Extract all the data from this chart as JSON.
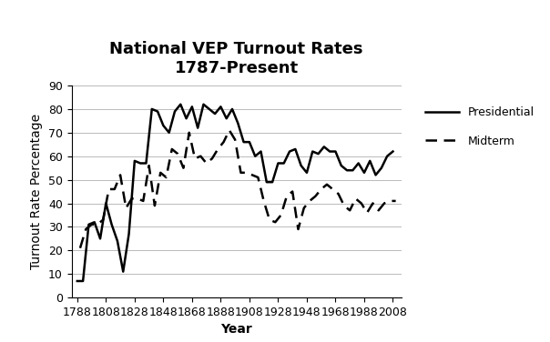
{
  "title": "National VEP Turnout Rates\n1787-Present",
  "xlabel": "Year",
  "ylabel": "Turnout Rate Percentage",
  "presidential_years": [
    1788,
    1792,
    1796,
    1800,
    1804,
    1808,
    1812,
    1816,
    1820,
    1824,
    1828,
    1832,
    1836,
    1840,
    1844,
    1848,
    1852,
    1856,
    1860,
    1864,
    1868,
    1872,
    1876,
    1880,
    1884,
    1888,
    1892,
    1896,
    1900,
    1904,
    1908,
    1912,
    1916,
    1920,
    1924,
    1928,
    1932,
    1936,
    1940,
    1944,
    1948,
    1952,
    1956,
    1960,
    1964,
    1968,
    1972,
    1976,
    1980,
    1984,
    1988,
    1992,
    1996,
    2000,
    2004,
    2008
  ],
  "presidential_values": [
    7,
    7,
    31,
    32,
    25,
    40,
    31,
    24,
    11,
    27,
    58,
    57,
    57,
    80,
    79,
    73,
    70,
    79,
    82,
    76,
    81,
    72,
    82,
    80,
    78,
    81,
    76,
    80,
    74,
    66,
    66,
    60,
    62,
    49,
    49,
    57,
    57,
    62,
    63,
    56,
    53,
    62,
    61,
    64,
    62,
    62,
    56,
    54,
    54,
    57,
    53,
    58,
    52,
    55,
    60,
    62
  ],
  "midterm_years": [
    1790,
    1794,
    1798,
    1802,
    1806,
    1810,
    1814,
    1818,
    1822,
    1826,
    1830,
    1834,
    1838,
    1842,
    1846,
    1850,
    1854,
    1858,
    1862,
    1866,
    1870,
    1874,
    1878,
    1882,
    1886,
    1890,
    1894,
    1898,
    1902,
    1906,
    1910,
    1914,
    1918,
    1922,
    1926,
    1930,
    1934,
    1938,
    1942,
    1946,
    1950,
    1954,
    1958,
    1962,
    1966,
    1970,
    1974,
    1978,
    1982,
    1986,
    1990,
    1994,
    1998,
    2002,
    2006,
    2010
  ],
  "midterm_values": [
    21,
    29,
    31,
    31,
    33,
    46,
    46,
    52,
    38,
    42,
    42,
    41,
    56,
    39,
    53,
    51,
    63,
    61,
    55,
    70,
    59,
    60,
    57,
    59,
    63,
    66,
    71,
    67,
    53,
    53,
    52,
    51,
    41,
    33,
    32,
    35,
    43,
    45,
    29,
    38,
    41,
    43,
    46,
    48,
    46,
    44,
    39,
    37,
    42,
    40,
    36,
    40,
    37,
    40,
    41,
    41
  ],
  "ylim": [
    0,
    90
  ],
  "yticks": [
    0,
    10,
    20,
    30,
    40,
    50,
    60,
    70,
    80,
    90
  ],
  "xticks": [
    1788,
    1808,
    1828,
    1848,
    1868,
    1888,
    1908,
    1928,
    1948,
    1968,
    1988,
    2008
  ],
  "xlim": [
    1784,
    2014
  ],
  "background_color": "#ffffff",
  "line_color": "#000000",
  "title_fontsize": 13,
  "axis_label_fontsize": 10,
  "tick_fontsize": 9,
  "legend_labels": [
    "Presidential",
    "Midterm"
  ],
  "grid_color": "#b0b0b0"
}
